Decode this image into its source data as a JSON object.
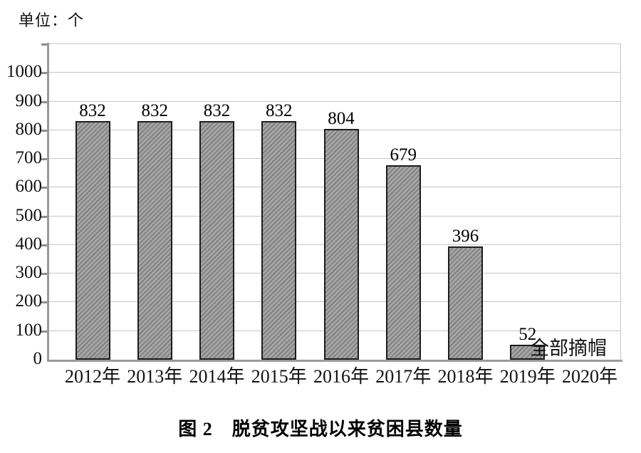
{
  "unit_label": "单位：个",
  "caption": "图 2　脱贫攻坚战以来贫困县数量",
  "chart_data": {
    "type": "bar",
    "title": "脱贫攻坚战以来贫困县数量",
    "unit": "个",
    "categories": [
      "2012年",
      "2013年",
      "2014年",
      "2015年",
      "2016年",
      "2017年",
      "2018年",
      "2019年",
      "2020年"
    ],
    "values": [
      832,
      832,
      832,
      832,
      804,
      679,
      396,
      52,
      null
    ],
    "bar_labels": [
      "832",
      "832",
      "832",
      "832",
      "804",
      "679",
      "396",
      "52",
      ""
    ],
    "annotation": {
      "text": "全部摘帽",
      "category": "2020年"
    },
    "xlabel": "",
    "ylabel": "",
    "ylim": [
      0,
      1100
    ],
    "ytick_step": 100,
    "ytick_labels": [
      "0",
      "100",
      "200",
      "300",
      "400",
      "500",
      "600",
      "700",
      "800",
      "900",
      "1000"
    ],
    "grid": true,
    "legend": "none",
    "colors": {
      "bar_fill": "#a4a4a4",
      "bar_hatch": "#7c7c7c",
      "bar_border": "#1d1d1d",
      "gridline": "#c6c6c6",
      "axis": "#9a9a9a",
      "text": "#111111",
      "background": "#ffffff"
    }
  }
}
